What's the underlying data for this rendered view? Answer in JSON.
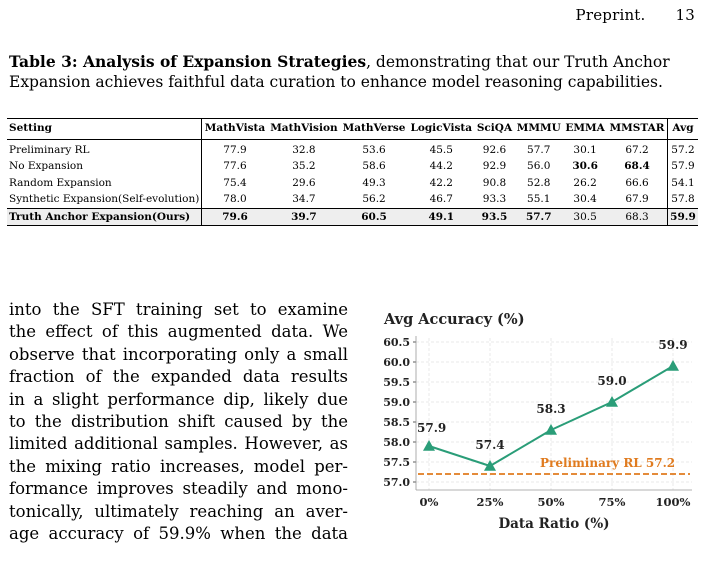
{
  "header": {
    "label": "Preprint.",
    "page_number": "13"
  },
  "caption": {
    "title": "Table 3: Analysis of Expansion Strategies",
    "text": ", demonstrating that our Truth Anchor Expansion achieves faithful data curation to enhance model reasoning capabilities."
  },
  "table": {
    "columns": [
      "Setting",
      "MathVista",
      "MathVision",
      "MathVerse",
      "LogicVista",
      "SciQA",
      "MMMU",
      "EMMA",
      "MMSTAR",
      "Avg"
    ],
    "rows": [
      [
        "Preliminary RL",
        "77.9",
        "32.8",
        "53.6",
        "45.5",
        "92.6",
        "57.7",
        "30.1",
        "67.2",
        "57.2"
      ],
      [
        "No Expansion",
        "77.6",
        "35.2",
        "58.6",
        "44.2",
        "92.9",
        "56.0",
        "30.6",
        "68.4",
        "57.9"
      ],
      [
        "Random Expansion",
        "75.4",
        "29.6",
        "49.3",
        "42.2",
        "90.8",
        "52.8",
        "26.2",
        "66.6",
        "54.1"
      ],
      [
        "Synthetic Expansion(Self-evolution)",
        "78.0",
        "34.7",
        "56.2",
        "46.7",
        "93.3",
        "55.1",
        "30.4",
        "67.9",
        "57.8"
      ],
      [
        "Truth Anchor Expansion(Ours)",
        "79.6",
        "39.7",
        "60.5",
        "49.1",
        "93.5",
        "57.7",
        "30.5",
        "68.3",
        "59.9"
      ]
    ]
  },
  "body_text": {
    "lines": [
      "into the SFT training set to examine",
      "the effect of this augmented data. We",
      "observe that incorporating only a small",
      "fraction of the expanded data results",
      "in a slight performance dip, likely due",
      "to the distribution shift caused by the",
      "limited additional samples. However, as",
      "the mixing ratio increases, model per-",
      "formance improves steadily and mono-",
      "tonically, ultimately reaching an aver-",
      "age accuracy of 59.9% when the data"
    ]
  },
  "chart_data": {
    "type": "line",
    "title": "Avg Accuracy (%)",
    "xlabel": "Data Ratio (%)",
    "ylabel": "",
    "categories": [
      "0%",
      "25%",
      "50%",
      "75%",
      "100%"
    ],
    "series": [
      {
        "values": [
          57.9,
          57.4,
          58.3,
          59.0,
          59.9
        ],
        "color": "#2a9d78",
        "marker": "triangle"
      }
    ],
    "data_labels": [
      "57.9",
      "57.4",
      "58.3",
      "59.0",
      "59.9"
    ],
    "ylim": [
      56.8,
      60.6
    ],
    "yticks": [
      "57.0",
      "57.5",
      "58.0",
      "58.5",
      "59.0",
      "59.5",
      "60.0",
      "60.5"
    ],
    "reference_line": {
      "label": "Preliminary RL  57.2",
      "value": 57.2,
      "color": "#e07b1f",
      "style": "dashed"
    },
    "grid": true
  }
}
